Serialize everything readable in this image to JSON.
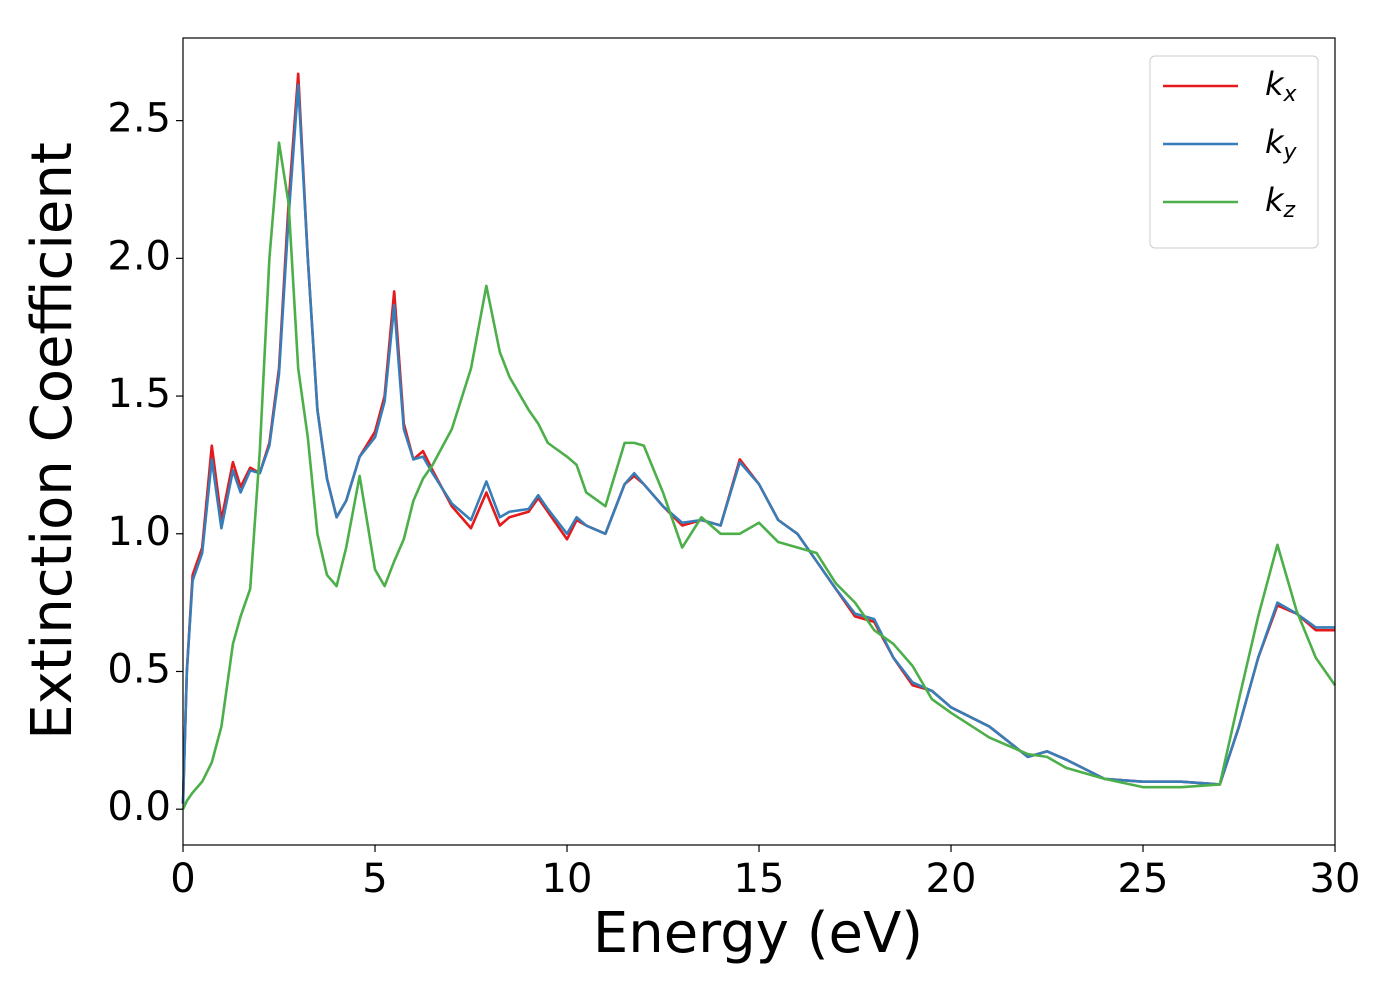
{
  "chart_data": {
    "type": "line",
    "x_label": "Energy (eV)",
    "y_label": "Extinction Coefficient",
    "x": [
      0,
      0.1,
      0.25,
      0.5,
      0.75,
      1.0,
      1.3,
      1.5,
      1.75,
      2.0,
      2.25,
      2.5,
      2.75,
      3.0,
      3.25,
      3.5,
      3.75,
      4.0,
      4.25,
      4.6,
      5.0,
      5.25,
      5.5,
      5.75,
      6.0,
      6.25,
      6.5,
      7.0,
      7.5,
      7.9,
      8.25,
      8.5,
      9.0,
      9.25,
      9.5,
      10.0,
      10.25,
      10.5,
      11.0,
      11.5,
      11.75,
      12.0,
      12.5,
      13.0,
      13.5,
      14.0,
      14.5,
      15.0,
      15.5,
      16.0,
      16.5,
      17.0,
      17.5,
      18.0,
      18.5,
      19.0,
      19.5,
      20.0,
      21.0,
      22.0,
      22.5,
      23.0,
      24.0,
      25.0,
      26.0,
      27.0,
      27.5,
      28.0,
      28.5,
      29.0,
      29.5,
      30.0
    ],
    "series": [
      {
        "name": "k_x",
        "color": "#e41a1c",
        "values": [
          0.02,
          0.5,
          0.85,
          0.95,
          1.32,
          1.05,
          1.26,
          1.17,
          1.24,
          1.22,
          1.33,
          1.6,
          2.2,
          2.67,
          2.0,
          1.45,
          1.2,
          1.06,
          1.12,
          1.28,
          1.37,
          1.5,
          1.88,
          1.4,
          1.27,
          1.3,
          1.23,
          1.1,
          1.02,
          1.15,
          1.03,
          1.06,
          1.08,
          1.13,
          1.08,
          0.98,
          1.05,
          1.03,
          1.0,
          1.18,
          1.21,
          1.18,
          1.1,
          1.03,
          1.05,
          1.03,
          1.27,
          1.18,
          1.05,
          1.0,
          0.9,
          0.8,
          0.7,
          0.68,
          0.55,
          0.45,
          0.43,
          0.37,
          0.3,
          0.19,
          0.21,
          0.18,
          0.11,
          0.1,
          0.1,
          0.09,
          0.3,
          0.55,
          0.74,
          0.71,
          0.65,
          0.65
        ]
      },
      {
        "name": "k_y",
        "color": "#377eb8",
        "values": [
          0.02,
          0.5,
          0.83,
          0.93,
          1.27,
          1.02,
          1.23,
          1.15,
          1.23,
          1.22,
          1.32,
          1.58,
          2.15,
          2.63,
          2.0,
          1.45,
          1.2,
          1.06,
          1.12,
          1.28,
          1.35,
          1.48,
          1.83,
          1.38,
          1.27,
          1.28,
          1.22,
          1.11,
          1.05,
          1.19,
          1.06,
          1.08,
          1.09,
          1.14,
          1.09,
          1.0,
          1.06,
          1.03,
          1.0,
          1.18,
          1.22,
          1.18,
          1.1,
          1.04,
          1.05,
          1.03,
          1.26,
          1.18,
          1.05,
          1.0,
          0.9,
          0.8,
          0.71,
          0.69,
          0.55,
          0.46,
          0.43,
          0.37,
          0.3,
          0.19,
          0.21,
          0.18,
          0.11,
          0.1,
          0.1,
          0.09,
          0.3,
          0.55,
          0.75,
          0.71,
          0.66,
          0.66
        ]
      },
      {
        "name": "k_z",
        "color": "#4daf4a",
        "values": [
          0.0,
          0.03,
          0.06,
          0.1,
          0.17,
          0.3,
          0.6,
          0.7,
          0.8,
          1.3,
          2.0,
          2.42,
          2.2,
          1.6,
          1.35,
          1.0,
          0.85,
          0.81,
          0.95,
          1.21,
          0.87,
          0.81,
          0.9,
          0.98,
          1.12,
          1.2,
          1.25,
          1.38,
          1.6,
          1.9,
          1.66,
          1.57,
          1.45,
          1.4,
          1.33,
          1.28,
          1.25,
          1.15,
          1.1,
          1.33,
          1.33,
          1.32,
          1.15,
          0.95,
          1.06,
          1.0,
          1.0,
          1.04,
          0.97,
          0.95,
          0.93,
          0.82,
          0.75,
          0.65,
          0.6,
          0.52,
          0.4,
          0.35,
          0.26,
          0.2,
          0.19,
          0.15,
          0.11,
          0.08,
          0.08,
          0.09,
          0.4,
          0.7,
          0.96,
          0.72,
          0.55,
          0.45
        ]
      }
    ],
    "xlim": [
      0,
      30
    ],
    "xticks": [
      0,
      5,
      10,
      15,
      20,
      25,
      30
    ],
    "ylim": [
      -0.13,
      2.8
    ],
    "yticks": [
      {
        "value": 0,
        "label": "0.0"
      },
      {
        "value": 0.5,
        "label": "0.5"
      },
      {
        "value": 1,
        "label": "1.0"
      },
      {
        "value": 1.5,
        "label": "1.5"
      },
      {
        "value": 2,
        "label": "2.0"
      },
      {
        "value": 2.5,
        "label": "2.5"
      }
    ],
    "grid": false,
    "legend": "upper right"
  }
}
